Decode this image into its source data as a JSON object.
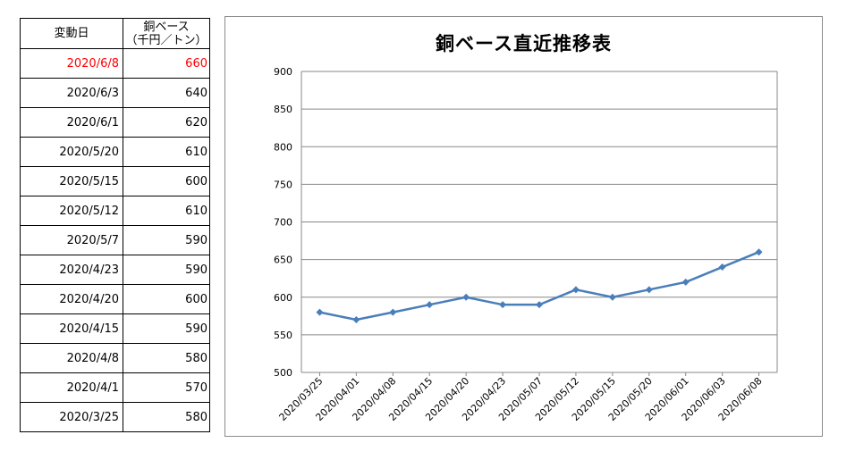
{
  "table": {
    "headers": {
      "date": "変動日",
      "value_line1": "銅ベース",
      "value_line2": "（千円／トン）"
    },
    "rows": [
      {
        "date": "2020/6/8",
        "value": "660",
        "highlight": true
      },
      {
        "date": "2020/6/3",
        "value": "640"
      },
      {
        "date": "2020/6/1",
        "value": "620"
      },
      {
        "date": "2020/5/20",
        "value": "610"
      },
      {
        "date": "2020/5/15",
        "value": "600"
      },
      {
        "date": "2020/5/12",
        "value": "610"
      },
      {
        "date": "2020/5/7",
        "value": "590"
      },
      {
        "date": "2020/4/23",
        "value": "590"
      },
      {
        "date": "2020/4/20",
        "value": "600"
      },
      {
        "date": "2020/4/15",
        "value": "590"
      },
      {
        "date": "2020/4/8",
        "value": "580"
      },
      {
        "date": "2020/4/1",
        "value": "570"
      },
      {
        "date": "2020/3/25",
        "value": "580"
      }
    ]
  },
  "colors": {
    "highlight": "#ff0000",
    "series": "#4a7ebb",
    "grid": "#888888"
  },
  "chart_data": {
    "type": "line",
    "title": "銅ベース直近推移表",
    "xlabel": "",
    "ylabel": "",
    "ylim": [
      500,
      900
    ],
    "yticks": [
      500,
      550,
      600,
      650,
      700,
      750,
      800,
      850,
      900
    ],
    "grid": true,
    "categories": [
      "2020/03/25",
      "2020/04/01",
      "2020/04/08",
      "2020/04/15",
      "2020/04/20",
      "2020/04/23",
      "2020/05/07",
      "2020/05/12",
      "2020/05/15",
      "2020/05/20",
      "2020/06/01",
      "2020/06/03",
      "2020/06/08"
    ],
    "series": [
      {
        "values": [
          580,
          570,
          580,
          590,
          600,
          590,
          590,
          610,
          600,
          610,
          620,
          640,
          660
        ]
      }
    ]
  }
}
